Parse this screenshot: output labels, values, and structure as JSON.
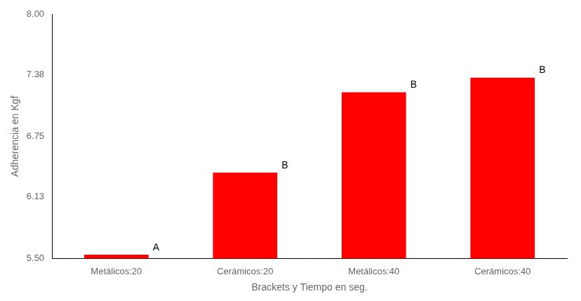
{
  "chart_data": {
    "type": "bar",
    "categories": [
      "Metálicos:20",
      "Cerámicos:20",
      "Metálicos:40",
      "Cerámicos:40"
    ],
    "values": [
      5.54,
      6.38,
      7.2,
      7.35
    ],
    "color": "#FF0000",
    "annotations": [
      "A",
      "B",
      "B",
      "B"
    ],
    "xlabel": "Brackets y Tiempo en seg.",
    "ylabel": "Adherencia en Kgf",
    "ylim": [
      5.5,
      8.0
    ],
    "yticks": [
      {
        "value": 5.5,
        "label": "5.50"
      },
      6.13,
      6.75,
      7.38,
      {
        "value": 8.0,
        "label": "8.00"
      }
    ],
    "grid": false
  }
}
